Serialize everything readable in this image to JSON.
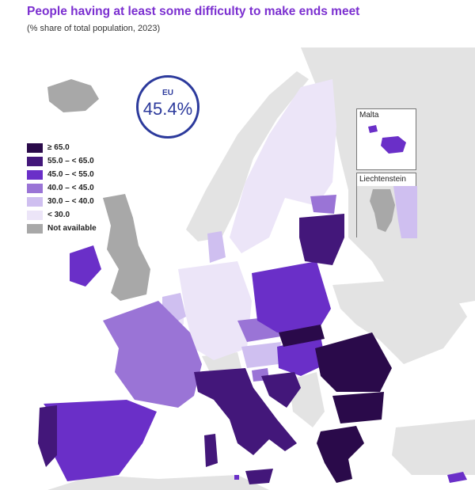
{
  "title": "People having at least some difficulty to make ends meet",
  "subtitle": "(% share of total population, 2023)",
  "eu": {
    "label": "EU",
    "value": "45.4%"
  },
  "legend": [
    {
      "label": "≥ 65.0",
      "color": "#2a0a4a"
    },
    {
      "label": "55.0 – < 65.0",
      "color": "#43177a"
    },
    {
      "label": "45.0 – < 55.0",
      "color": "#6a2fc8"
    },
    {
      "label": "40.0 – < 45.0",
      "color": "#9a74d6"
    },
    {
      "label": "30.0 – < 40.0",
      "color": "#cfbff0"
    },
    {
      "label": "< 30.0",
      "color": "#ece5f8"
    },
    {
      "label": "Not available",
      "color": "#a8a8a8"
    }
  ],
  "insets": {
    "malta": {
      "label": "Malta"
    },
    "liechtenstein": {
      "label": "Liechtenstein"
    }
  },
  "colors": {
    "background_land": "#e3e3e3",
    "not_available": "#a8a8a8",
    "title": "#7b2fd0",
    "eu_circle": "#2c3a9c"
  }
}
